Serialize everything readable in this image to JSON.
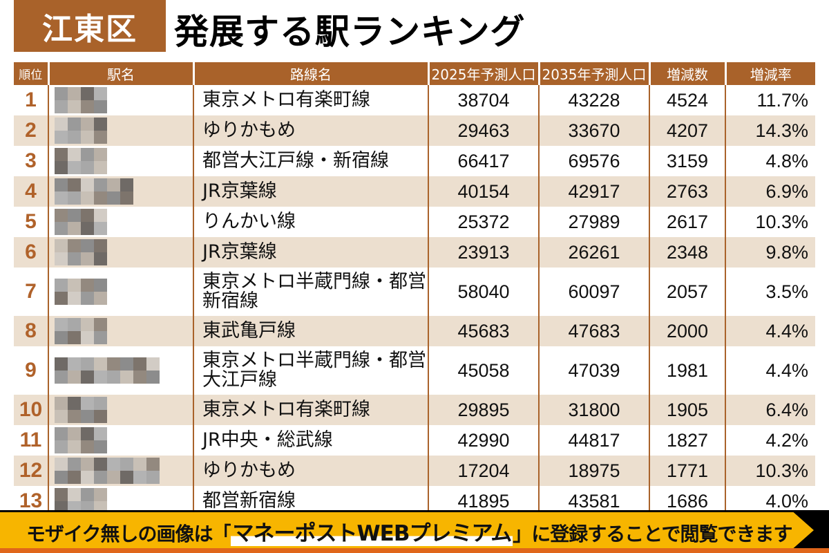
{
  "title": {
    "ward": "江東区",
    "heading": "発展する駅ランキング"
  },
  "colors": {
    "accent": "#a9622a",
    "row_alt": "#ecdfcf",
    "rank_text": "#b0622a",
    "banner": "#f7b500"
  },
  "table": {
    "headers": [
      "順位",
      "駅名",
      "路線名",
      "2025年予測人口",
      "2035年予測人口",
      "増減数",
      "増減率"
    ],
    "rows": [
      {
        "rank": "1",
        "station": "",
        "line": "東京メトロ有楽町線",
        "pop2025": "38704",
        "pop2035": "43228",
        "change": "4524",
        "rate": "11.7%"
      },
      {
        "rank": "2",
        "station": "",
        "line": "ゆりかもめ",
        "pop2025": "29463",
        "pop2035": "33670",
        "change": "4207",
        "rate": "14.3%"
      },
      {
        "rank": "3",
        "station": "",
        "line": "都営大江戸線・新宿線",
        "pop2025": "66417",
        "pop2035": "69576",
        "change": "3159",
        "rate": "4.8%"
      },
      {
        "rank": "4",
        "station": "",
        "line": "JR京葉線",
        "pop2025": "40154",
        "pop2035": "42917",
        "change": "2763",
        "rate": "6.9%"
      },
      {
        "rank": "5",
        "station": "",
        "line": "りんかい線",
        "pop2025": "25372",
        "pop2035": "27989",
        "change": "2617",
        "rate": "10.3%"
      },
      {
        "rank": "6",
        "station": "",
        "line": "JR京葉線",
        "pop2025": "23913",
        "pop2035": "26261",
        "change": "2348",
        "rate": "9.8%"
      },
      {
        "rank": "7",
        "station": "",
        "line": "東京メトロ半蔵門線・都営新宿線",
        "pop2025": "58040",
        "pop2035": "60097",
        "change": "2057",
        "rate": "3.5%"
      },
      {
        "rank": "8",
        "station": "",
        "line": "東武亀戸線",
        "pop2025": "45683",
        "pop2035": "47683",
        "change": "2000",
        "rate": "4.4%"
      },
      {
        "rank": "9",
        "station": "",
        "line": "東京メトロ半蔵門線・都営大江戸線",
        "pop2025": "45058",
        "pop2035": "47039",
        "change": "1981",
        "rate": "4.4%"
      },
      {
        "rank": "10",
        "station": "",
        "line": "東京メトロ有楽町線",
        "pop2025": "29895",
        "pop2035": "31800",
        "change": "1905",
        "rate": "6.4%"
      },
      {
        "rank": "11",
        "station": "",
        "line": "JR中央・総武線",
        "pop2025": "42990",
        "pop2035": "44817",
        "change": "1827",
        "rate": "4.2%"
      },
      {
        "rank": "12",
        "station": "",
        "line": "ゆりかもめ",
        "pop2025": "17204",
        "pop2035": "18975",
        "change": "1771",
        "rate": "10.3%"
      },
      {
        "rank": "13",
        "station": "",
        "line": "都営新宿線",
        "pop2025": "41895",
        "pop2035": "43581",
        "change": "1686",
        "rate": "4.0%"
      }
    ]
  },
  "banner": {
    "prefix": "モザイク無しの画像は「",
    "highlight": "マネーポストWEBプレミアム",
    "suffix": "」に登録することで閲覧できます"
  },
  "chart_data": {
    "type": "table",
    "title": "江東区 発展する駅ランキング",
    "columns": [
      "順位",
      "駅名",
      "路線名",
      "2025年予測人口",
      "2035年予測人口",
      "増減数",
      "増減率"
    ],
    "note": "駅名 is mosaic-obscured in the image",
    "rows": [
      [
        1,
        null,
        "東京メトロ有楽町線",
        38704,
        43228,
        4524,
        11.7
      ],
      [
        2,
        null,
        "ゆりかもめ",
        29463,
        33670,
        4207,
        14.3
      ],
      [
        3,
        null,
        "都営大江戸線・新宿線",
        66417,
        69576,
        3159,
        4.8
      ],
      [
        4,
        null,
        "JR京葉線",
        40154,
        42917,
        2763,
        6.9
      ],
      [
        5,
        null,
        "りんかい線",
        25372,
        27989,
        2617,
        10.3
      ],
      [
        6,
        null,
        "JR京葉線",
        23913,
        26261,
        2348,
        9.8
      ],
      [
        7,
        null,
        "東京メトロ半蔵門線・都営新宿線",
        58040,
        60097,
        2057,
        3.5
      ],
      [
        8,
        null,
        "東武亀戸線",
        45683,
        47683,
        2000,
        4.4
      ],
      [
        9,
        null,
        "東京メトロ半蔵門線・都営大江戸線",
        45058,
        47039,
        1981,
        4.4
      ],
      [
        10,
        null,
        "東京メトロ有楽町線",
        29895,
        31800,
        1905,
        6.4
      ],
      [
        11,
        null,
        "JR中央・総武線",
        42990,
        44817,
        1827,
        4.2
      ],
      [
        12,
        null,
        "ゆりかもめ",
        17204,
        18975,
        1771,
        10.3
      ],
      [
        13,
        null,
        "都営新宿線",
        41895,
        43581,
        1686,
        4.0
      ]
    ]
  }
}
